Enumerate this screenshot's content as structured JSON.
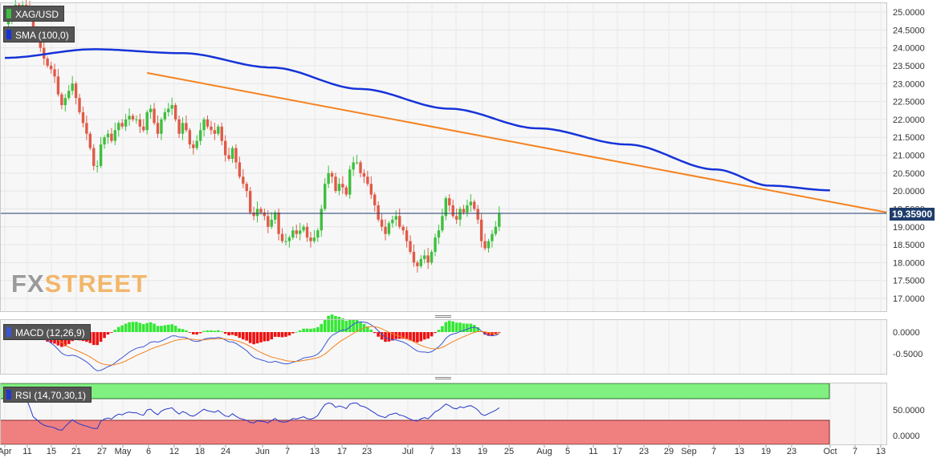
{
  "symbol_label": "XAG/USD",
  "sma_label": "SMA (100,0)",
  "macd_label": "MACD (12,26,9)",
  "rsi_label": "RSI (14,70,30,1)",
  "last_price": "19.35900",
  "watermark": {
    "fx": "FX",
    "street": "STREET"
  },
  "colors": {
    "up": "#3fbf3f",
    "down": "#e05a48",
    "sma": "#1533d8",
    "trend": "#f58220",
    "macd_line": "#3a55d8",
    "signal_line": "#f58220",
    "hist_pos": "#33e833",
    "hist_neg": "#ee1111",
    "rsi_line": "#2438c8",
    "rsi_over": "#80f080",
    "rsi_under": "#f08080"
  },
  "chart_data": {
    "type": "candlestick",
    "price_axis": {
      "min": 17.0,
      "max": 25.0,
      "ticks": [
        "25.0000",
        "24.5000",
        "24.0000",
        "23.5000",
        "23.0000",
        "22.5000",
        "22.0000",
        "21.5000",
        "21.0000",
        "20.5000",
        "20.0000",
        "19.5000",
        "19.0000",
        "18.5000",
        "18.0000",
        "17.5000",
        "17.0000"
      ]
    },
    "x_ticks": [
      "Apr",
      "11",
      "15",
      "21",
      "27",
      "May",
      "6",
      "12",
      "18",
      "24",
      "Jun",
      "7",
      "13",
      "17",
      "23",
      "Jul",
      "7",
      "13",
      "19",
      "25",
      "Aug",
      "5",
      "11",
      "17",
      "23",
      "29",
      "Sep",
      "7",
      "13",
      "19",
      "23",
      "Oct",
      "7",
      "13"
    ],
    "closes": [
      24.66,
      24.85,
      25.0,
      25.2,
      25.1,
      25.2,
      25.1,
      24.9,
      24.5,
      24.3,
      24.0,
      23.7,
      23.5,
      23.4,
      23.2,
      22.7,
      22.4,
      22.6,
      22.8,
      23.0,
      22.6,
      22.2,
      21.9,
      21.6,
      21.2,
      20.7,
      20.7,
      21.3,
      21.5,
      21.6,
      21.4,
      21.7,
      21.9,
      21.8,
      22.0,
      22.1,
      22.0,
      22.0,
      21.8,
      21.7,
      22.2,
      22.3,
      21.9,
      21.6,
      22.0,
      22.2,
      22.3,
      22.4,
      22.0,
      21.6,
      21.9,
      21.7,
      21.3,
      21.2,
      21.4,
      21.7,
      22.0,
      21.8,
      21.7,
      21.6,
      21.8,
      21.4,
      21.0,
      20.9,
      21.2,
      20.8,
      20.4,
      20.2,
      20.0,
      19.4,
      19.3,
      19.5,
      19.4,
      19.3,
      19.0,
      19.2,
      19.4,
      18.8,
      18.6,
      18.6,
      18.7,
      18.9,
      18.8,
      18.9,
      19.0,
      18.7,
      18.6,
      18.7,
      18.9,
      19.5,
      20.2,
      20.5,
      20.4,
      20.0,
      20.2,
      20.1,
      19.9,
      20.6,
      20.8,
      20.8,
      20.5,
      20.4,
      20.2,
      19.9,
      19.6,
      19.2,
      19.0,
      18.8,
      19.1,
      19.2,
      19.3,
      19.0,
      18.9,
      18.6,
      18.3,
      18.0,
      17.9,
      18.1,
      18.2,
      18.0,
      18.3,
      18.7,
      18.9,
      19.3,
      19.8,
      19.6,
      19.3,
      19.2,
      19.5,
      19.4,
      19.6,
      19.7,
      19.5,
      19.2,
      18.6,
      18.4,
      18.6,
      18.8,
      19.0,
      19.36
    ],
    "sma_100_anchors": [
      [
        0,
        23.72
      ],
      [
        25,
        23.96
      ],
      [
        50,
        23.85
      ],
      [
        75,
        23.45
      ],
      [
        100,
        22.85
      ],
      [
        125,
        22.3
      ],
      [
        150,
        21.75
      ],
      [
        175,
        21.3
      ],
      [
        200,
        20.6
      ],
      [
        215,
        20.15
      ],
      [
        232,
        20.02
      ]
    ],
    "trendline": {
      "start": [
        40,
        23.3
      ],
      "end": [
        250,
        19.4
      ]
    },
    "macd": {
      "axis": {
        "min": -0.9,
        "max": 0.4,
        "ticks": [
          "0.0000",
          "-0.5000"
        ]
      }
    },
    "rsi": {
      "axis": {
        "min": 0,
        "max": 100,
        "ticks": [
          "50.0000",
          "0.0000"
        ]
      },
      "overbought": 70,
      "oversold": 30
    }
  }
}
